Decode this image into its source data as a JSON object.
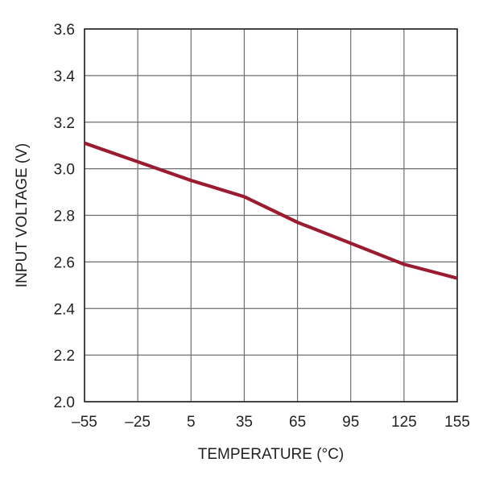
{
  "chart_data": {
    "type": "line",
    "xlabel": "TEMPERATURE (°C)",
    "ylabel": "INPUT VOLTAGE (V)",
    "xlim": [
      -55,
      155
    ],
    "ylim": [
      2.0,
      3.6
    ],
    "x_ticks": [
      -55,
      -25,
      5,
      35,
      65,
      95,
      125,
      155
    ],
    "x_tick_labels": [
      "–55",
      "–25",
      "5",
      "35",
      "65",
      "95",
      "125",
      "155"
    ],
    "y_ticks": [
      2.0,
      2.2,
      2.4,
      2.6,
      2.8,
      3.0,
      3.2,
      3.4,
      3.6
    ],
    "y_tick_labels": [
      "2.0",
      "2.2",
      "2.4",
      "2.6",
      "2.8",
      "3.0",
      "3.2",
      "3.4",
      "3.6"
    ],
    "grid": true,
    "series": [
      {
        "color": "#9b1b30",
        "x": [
          -55,
          -25,
          5,
          35,
          65,
          95,
          125,
          155
        ],
        "y": [
          3.11,
          3.03,
          2.95,
          2.88,
          2.77,
          2.68,
          2.59,
          2.53
        ]
      }
    ]
  }
}
